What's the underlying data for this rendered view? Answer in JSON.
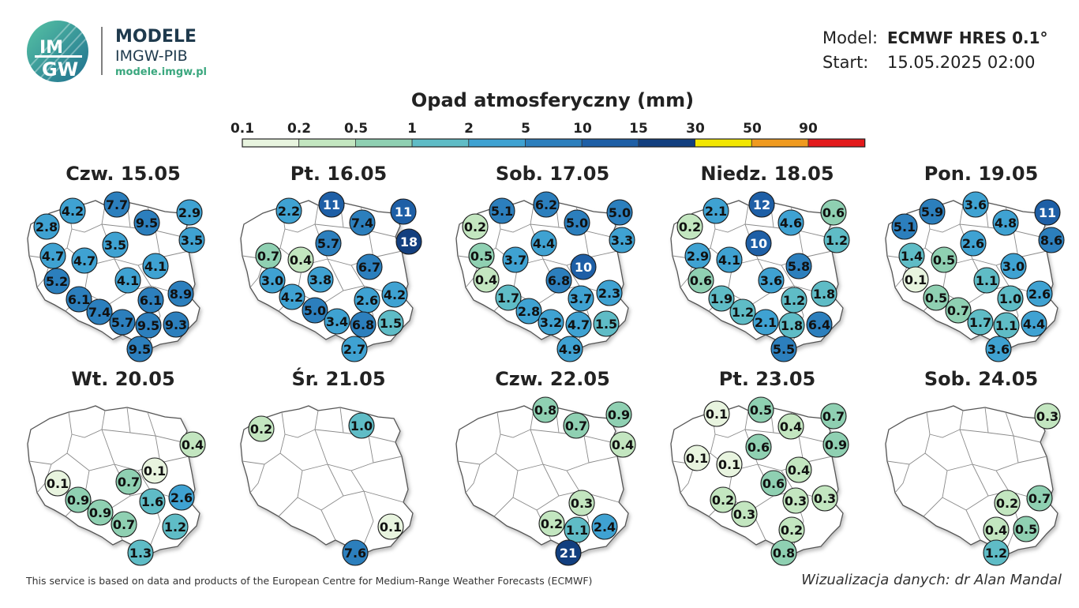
{
  "brand": {
    "logo_top": "IM",
    "logo_bottom": "GW",
    "name": "MODELE",
    "sub": "IMGW-PIB",
    "url": "modele.imgw.pl"
  },
  "model_info": {
    "model_label": "Model:",
    "model_value": "ECMWF HRES 0.1°",
    "start_label": "Start:",
    "start_value": "15.05.2025 02:00"
  },
  "legend": {
    "title": "Opad atmosferyczny (mm)",
    "ticks": [
      "0.1",
      "0.2",
      "0.5",
      "1",
      "2",
      "5",
      "10",
      "15",
      "30",
      "50",
      "90"
    ],
    "colors": [
      "#e8f4df",
      "#c3e6c0",
      "#8fd0b2",
      "#5fbcc6",
      "#3fa2d2",
      "#2c7fbd",
      "#1e5fa6",
      "#123f7f",
      "#f2e600",
      "#ef9a1f",
      "#e31a1c"
    ]
  },
  "panels": [
    {
      "label": "Czw. 15.05",
      "values": [
        "7.7",
        "4.2",
        "9.5",
        "2.9",
        "2.8",
        "3.5",
        "3.5",
        "4.7",
        "4.7",
        "4.1",
        "4.1",
        "5.2",
        "8.9",
        "6.1",
        "6.1",
        "7.4",
        "5.7",
        "9.5",
        "9.3",
        "9.5"
      ]
    },
    {
      "label": "Pt. 16.05",
      "values": [
        "2.2",
        "11",
        "11",
        "7.4",
        "18",
        "5.7",
        "0.7",
        "0.4",
        "6.7",
        "3.0",
        "3.8",
        "4.2",
        "4.2",
        "2.6",
        "5.0",
        "3.4",
        "6.8",
        "1.5",
        "2.7"
      ]
    },
    {
      "label": "Sob. 17.05",
      "values": [
        "5.1",
        "6.2",
        "5.0",
        "5.0",
        "0.2",
        "4.4",
        "3.3",
        "0.5",
        "3.7",
        "10",
        "0.4",
        "6.8",
        "1.7",
        "3.7",
        "2.3",
        "2.8",
        "3.2",
        "4.7",
        "1.5",
        "4.9"
      ]
    },
    {
      "label": "Niedz. 18.05",
      "values": [
        "2.1",
        "12",
        "4.6",
        "0.6",
        "0.2",
        "10",
        "1.2",
        "2.9",
        "4.1",
        "5.8",
        "0.6",
        "3.6",
        "1.8",
        "1.9",
        "1.2",
        "1.2",
        "2.1",
        "1.8",
        "6.4",
        "5.5"
      ]
    },
    {
      "label": "Pon. 19.05",
      "values": [
        "3.6",
        "5.9",
        "4.8",
        "11",
        "5.1",
        "2.6",
        "8.6",
        "1.4",
        "0.5",
        "3.0",
        "0.1",
        "1.1",
        "0.5",
        "1.0",
        "2.6",
        "0.7",
        "1.7",
        "1.1",
        "4.4",
        "3.6"
      ]
    },
    {
      "label": "Wt. 20.05",
      "values": [
        "0.4",
        "0.1",
        "0.1",
        "0.7",
        "0.9",
        "0.9",
        "1.6",
        "2.6",
        "0.7",
        "1.2",
        "1.3"
      ]
    },
    {
      "label": "Śr. 21.05",
      "values": [
        "0.2",
        "1.0",
        "0.1",
        "7.6"
      ]
    },
    {
      "label": "Czw. 22.05",
      "values": [
        "0.8",
        "0.9",
        "0.7",
        "0.4",
        "0.3",
        "0.2",
        "1.1",
        "2.4",
        "21"
      ]
    },
    {
      "label": "Pt. 23.05",
      "values": [
        "0.5",
        "0.1",
        "0.7",
        "0.4",
        "0.6",
        "0.9",
        "0.1",
        "0.1",
        "0.4",
        "0.6",
        "0.2",
        "0.3",
        "0.3",
        "0.3",
        "0.2",
        "0.8"
      ]
    },
    {
      "label": "Sob. 24.05",
      "values": [
        "0.3",
        "0.2",
        "0.7",
        "0.4",
        "0.5",
        "1.2"
      ]
    }
  ],
  "footer": {
    "credit": "This service is based on data and products of the European Centre for Medium-Range Weather Forecasts (ECMWF)",
    "author": "Wizualizacja danych: dr Alan Mandal"
  }
}
